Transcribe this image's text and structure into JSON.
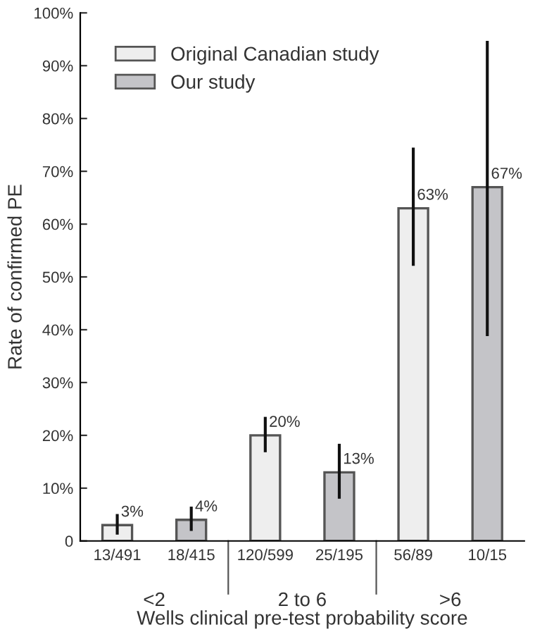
{
  "chart_data": {
    "type": "bar",
    "xlabel": "Wells clinical pre-test probability score",
    "ylabel": "Rate of confirmed PE",
    "categories": [
      "13/491",
      "18/415",
      "120/599",
      "25/195",
      "56/89",
      "10/15"
    ],
    "series": [
      {
        "name": "Original Canadian study",
        "color": "#eeeeee",
        "values": [
          3,
          null,
          20,
          null,
          63,
          null
        ],
        "errors": [
          [
            1.2,
            5.1
          ],
          null,
          [
            16.8,
            23.5
          ],
          null,
          [
            52.1,
            74.5
          ],
          null
        ],
        "value_labels": [
          "3%",
          null,
          "20%",
          null,
          "63%",
          null
        ]
      },
      {
        "name": "Our study",
        "color": "#c4c4c8",
        "values": [
          null,
          4,
          null,
          13,
          null,
          67
        ],
        "errors": [
          null,
          [
            1.9,
            6.5
          ],
          null,
          [
            8.0,
            18.4
          ],
          null,
          [
            38.8,
            94.7
          ]
        ],
        "value_labels": [
          null,
          "4%",
          null,
          "13%",
          null,
          "67%"
        ]
      }
    ],
    "annotations": [
      "<2",
      "2 to 6",
      ">6"
    ],
    "ylim": [
      0,
      100
    ],
    "yticks": [
      {
        "value": 0,
        "label": "0"
      },
      {
        "value": 10,
        "label": "10%"
      },
      {
        "value": 20,
        "label": "20%"
      },
      {
        "value": 30,
        "label": "30%"
      },
      {
        "value": 40,
        "label": "40%"
      },
      {
        "value": 50,
        "label": "50%"
      },
      {
        "value": 60,
        "label": "60%"
      },
      {
        "value": 70,
        "label": "70%"
      },
      {
        "value": 80,
        "label": "80%"
      },
      {
        "value": 90,
        "label": "90%"
      },
      {
        "value": 100,
        "label": "100%"
      }
    ],
    "grid": false,
    "legend": "top left"
  }
}
